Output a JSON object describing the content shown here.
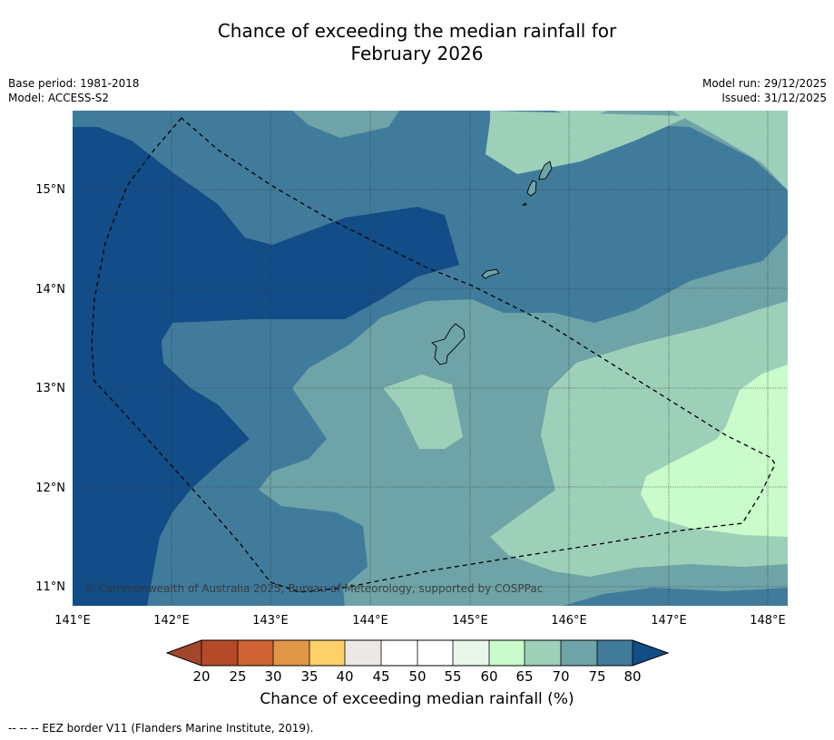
{
  "header": {
    "title_line1": "Chance of exceeding the median rainfall for",
    "title_line2": "February 2026"
  },
  "meta": {
    "base_period": "Base period: 1981-2018",
    "model": "Model: ACCESS-S2",
    "model_run": "Model run: 29/12/2025",
    "issued": "Issued: 31/12/2025"
  },
  "map": {
    "lon_labels": [
      "141°E",
      "142°E",
      "143°E",
      "144°E",
      "145°E",
      "146°E",
      "147°E",
      "148°E"
    ],
    "lat_labels": [
      "15°N",
      "14°N",
      "13°N",
      "12°N",
      "11°N"
    ],
    "copyright": "© Commonwealth of Australia 2025, Bureau of Meteorology, supported by COSPPac"
  },
  "colorbar": {
    "ticks": [
      "20",
      "25",
      "30",
      "35",
      "40",
      "45",
      "50",
      "55",
      "60",
      "65",
      "70",
      "75",
      "80"
    ],
    "colors": {
      "under": "#a3472b",
      "c20_25": "#b44a27",
      "c25_30": "#cf6333",
      "c30_35": "#e19547",
      "c35_40": "#fdd069",
      "c40_45": "#ece8e5",
      "c45_50": "#ffffff",
      "c50_55": "#ffffff",
      "c55_60": "#e7f6e8",
      "c60_65": "#c9fbcb",
      "c65_70": "#9dd0b8",
      "c70_75": "#6ea4a7",
      "c75_80": "#417b9c",
      "over": "#134d87"
    },
    "label": "Chance of exceeding median rainfall (%)"
  },
  "footer": {
    "eez_legend": "--  --  -- EEZ border V11 (Flanders Marine Institute, 2019)."
  }
}
